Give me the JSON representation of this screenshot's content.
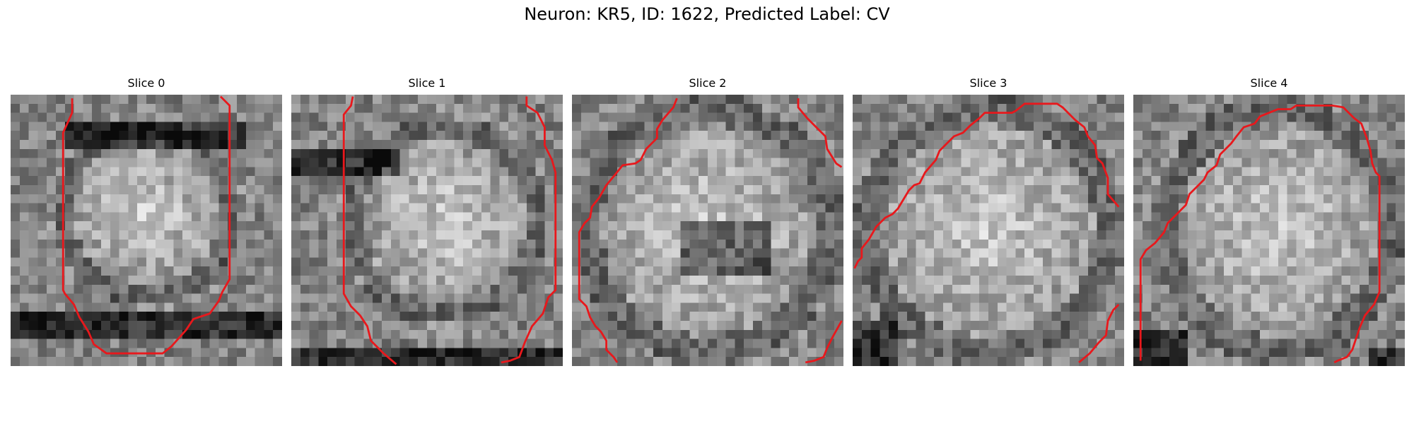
{
  "figure": {
    "title": "Neuron: KR5, ID: 1622, Predicted Label: CV",
    "contour_color": "#e8181c",
    "colormap": "grayscale",
    "grid_size": 30
  },
  "slices": [
    {
      "title": "Slice 0",
      "contours": [
        [
          [
            6.8,
            0.4
          ],
          [
            6.8,
            2.0
          ],
          [
            5.8,
            4.2
          ],
          [
            5.8,
            21.6
          ],
          [
            6.0,
            22.0
          ],
          [
            7.0,
            23.2
          ],
          [
            7.6,
            24.6
          ],
          [
            8.6,
            26.2
          ],
          [
            9.2,
            27.6
          ],
          [
            10.6,
            28.6
          ],
          [
            16.8,
            28.6
          ],
          [
            17.8,
            27.8
          ],
          [
            19.4,
            26.0
          ],
          [
            20.2,
            24.8
          ],
          [
            22.0,
            24.2
          ],
          [
            23.0,
            22.8
          ],
          [
            23.4,
            21.8
          ],
          [
            24.2,
            20.4
          ],
          [
            24.2,
            1.2
          ],
          [
            23.2,
            0.2
          ]
        ]
      ]
    },
    {
      "title": "Slice 1",
      "contours": [
        [
          [
            6.8,
            0.2
          ],
          [
            6.6,
            1.2
          ],
          [
            5.8,
            2.2
          ],
          [
            5.8,
            22.0
          ],
          [
            6.6,
            23.4
          ],
          [
            7.6,
            24.4
          ],
          [
            8.4,
            25.6
          ],
          [
            8.8,
            27.2
          ],
          [
            10.2,
            28.6
          ],
          [
            11.6,
            29.8
          ]
        ],
        [
          [
            26.0,
            0.2
          ],
          [
            26.0,
            1.2
          ],
          [
            27.2,
            2.0
          ],
          [
            28.0,
            3.6
          ],
          [
            28.0,
            5.6
          ],
          [
            28.8,
            7.2
          ],
          [
            29.2,
            8.6
          ],
          [
            29.2,
            21.6
          ],
          [
            28.4,
            22.4
          ],
          [
            27.8,
            24.2
          ],
          [
            26.6,
            25.6
          ],
          [
            25.8,
            27.4
          ],
          [
            25.2,
            29.0
          ],
          [
            24.2,
            29.4
          ],
          [
            23.2,
            29.6
          ]
        ]
      ]
    },
    {
      "title": "Slice 2",
      "contours": [
        [
          [
            11.6,
            0.4
          ],
          [
            11.2,
            1.4
          ],
          [
            10.0,
            2.8
          ],
          [
            9.4,
            3.8
          ],
          [
            9.4,
            4.8
          ],
          [
            8.2,
            6.0
          ],
          [
            7.6,
            7.2
          ],
          [
            7.0,
            7.6
          ],
          [
            5.6,
            7.8
          ],
          [
            4.8,
            8.8
          ],
          [
            3.8,
            10.0
          ],
          [
            3.0,
            11.4
          ],
          [
            2.2,
            12.4
          ],
          [
            2.0,
            13.6
          ],
          [
            1.4,
            14.2
          ],
          [
            0.8,
            15.2
          ],
          [
            0.8,
            22.6
          ],
          [
            1.6,
            23.4
          ],
          [
            2.0,
            24.6
          ],
          [
            2.6,
            25.6
          ],
          [
            3.2,
            26.2
          ],
          [
            3.8,
            27.2
          ],
          [
            3.8,
            28.2
          ],
          [
            4.6,
            29.0
          ],
          [
            5.0,
            29.6
          ]
        ],
        [
          [
            25.0,
            0.4
          ],
          [
            25.0,
            1.4
          ],
          [
            26.0,
            2.6
          ],
          [
            27.0,
            3.6
          ],
          [
            28.0,
            4.6
          ],
          [
            28.2,
            6.0
          ],
          [
            29.2,
            7.6
          ],
          [
            29.8,
            8.0
          ]
        ],
        [
          [
            29.8,
            25.0
          ],
          [
            28.8,
            26.8
          ],
          [
            28.2,
            28.0
          ],
          [
            27.8,
            29.0
          ],
          [
            26.8,
            29.4
          ],
          [
            25.8,
            29.6
          ]
        ]
      ]
    },
    {
      "title": "Slice 3",
      "contours": [
        [
          [
            29.4,
            12.4
          ],
          [
            28.2,
            11.0
          ],
          [
            28.2,
            9.2
          ],
          [
            27.6,
            7.6
          ],
          [
            27.0,
            7.0
          ],
          [
            26.8,
            5.6
          ],
          [
            26.0,
            4.6
          ],
          [
            25.6,
            3.6
          ],
          [
            24.6,
            2.8
          ],
          [
            23.8,
            2.0
          ],
          [
            23.2,
            1.4
          ],
          [
            22.6,
            1.0
          ],
          [
            19.0,
            1.0
          ],
          [
            18.0,
            1.8
          ],
          [
            17.6,
            2.0
          ],
          [
            14.6,
            2.0
          ],
          [
            14.0,
            2.6
          ],
          [
            13.0,
            3.4
          ],
          [
            12.2,
            4.2
          ],
          [
            11.2,
            4.6
          ],
          [
            10.4,
            5.4
          ],
          [
            9.6,
            6.2
          ],
          [
            9.2,
            7.2
          ],
          [
            8.0,
            8.6
          ],
          [
            7.4,
            9.8
          ],
          [
            6.8,
            10.0
          ],
          [
            6.2,
            10.6
          ],
          [
            5.6,
            11.6
          ],
          [
            5.0,
            12.6
          ],
          [
            4.4,
            13.2
          ],
          [
            3.6,
            13.6
          ],
          [
            2.6,
            14.6
          ],
          [
            1.8,
            16.0
          ],
          [
            1.0,
            17.0
          ],
          [
            1.0,
            18.0
          ],
          [
            0.6,
            18.4
          ],
          [
            0.2,
            19.2
          ]
        ],
        [
          [
            29.4,
            23.2
          ],
          [
            28.8,
            23.8
          ],
          [
            28.2,
            25.0
          ],
          [
            28.0,
            26.6
          ],
          [
            27.2,
            27.4
          ],
          [
            26.2,
            28.6
          ],
          [
            25.0,
            29.6
          ]
        ]
      ]
    },
    {
      "title": "Slice 4",
      "contours": [
        [
          [
            0.8,
            29.4
          ],
          [
            0.8,
            18.2
          ],
          [
            1.4,
            17.2
          ],
          [
            2.4,
            16.4
          ],
          [
            3.4,
            15.2
          ],
          [
            3.8,
            14.2
          ],
          [
            4.8,
            13.2
          ],
          [
            5.8,
            12.2
          ],
          [
            6.2,
            11.0
          ],
          [
            7.0,
            10.2
          ],
          [
            7.8,
            9.4
          ],
          [
            8.2,
            8.6
          ],
          [
            9.2,
            7.8
          ],
          [
            9.6,
            6.6
          ],
          [
            10.8,
            5.4
          ],
          [
            11.4,
            4.6
          ],
          [
            12.2,
            3.6
          ],
          [
            13.4,
            3.2
          ],
          [
            14.0,
            2.4
          ],
          [
            15.0,
            2.0
          ],
          [
            16.0,
            1.6
          ],
          [
            17.4,
            1.6
          ],
          [
            18.0,
            1.2
          ],
          [
            20.4,
            1.2
          ],
          [
            22.0,
            1.2
          ],
          [
            23.2,
            1.4
          ],
          [
            23.8,
            2.0
          ],
          [
            24.4,
            2.6
          ],
          [
            25.2,
            3.2
          ],
          [
            25.8,
            4.8
          ],
          [
            26.2,
            6.2
          ],
          [
            26.4,
            7.6
          ],
          [
            26.8,
            8.6
          ],
          [
            27.2,
            9.0
          ],
          [
            27.2,
            21.8
          ],
          [
            26.6,
            23.2
          ],
          [
            25.6,
            24.4
          ],
          [
            25.0,
            25.8
          ],
          [
            24.6,
            27.0
          ],
          [
            24.2,
            28.2
          ],
          [
            23.6,
            29.0
          ],
          [
            22.6,
            29.4
          ],
          [
            22.2,
            29.6
          ]
        ]
      ]
    }
  ]
}
